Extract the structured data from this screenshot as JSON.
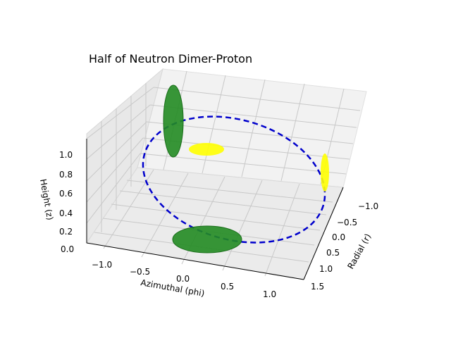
{
  "chart_data": {
    "type": "3d-scatter",
    "title": "Half of Neutron Dimer-Proton",
    "xlabel": "Azimuthal (phi)",
    "ylabel": "Radial (r)",
    "zlabel": "Height (z)",
    "x_ticks": [
      "−1.0",
      "−0.5",
      "0.0",
      "0.5",
      "1.0"
    ],
    "y_ticks": [
      "−1.0",
      "−0.5",
      "0.0",
      "0.5",
      "1.0",
      "1.5"
    ],
    "z_ticks": [
      "0.0",
      "0.2",
      "0.4",
      "0.6",
      "0.8",
      "1.0"
    ],
    "xlim": [
      -1.25,
      1.25
    ],
    "ylim": [
      -1.25,
      1.75
    ],
    "zlim": [
      0,
      1.1
    ],
    "grid": true,
    "orbit": {
      "shape": "dashed ellipse",
      "color": "#0000cc",
      "description": "tilted dashed orbit from height ~0.8 to ~0.0"
    },
    "particles": [
      {
        "kind": "neutron",
        "color": "#228b22",
        "position": "upper-left, vertical ellipse",
        "z": 0.8
      },
      {
        "kind": "proton",
        "color": "#ffff00",
        "position": "center, horizontal ellipse",
        "z": 0.75
      },
      {
        "kind": "proton",
        "color": "#ffff00",
        "position": "right, vertical ellipse",
        "z": 0.5
      },
      {
        "kind": "neutron",
        "color": "#228b22",
        "position": "bottom-center, horizontal ellipse",
        "z": 0.0
      }
    ]
  }
}
